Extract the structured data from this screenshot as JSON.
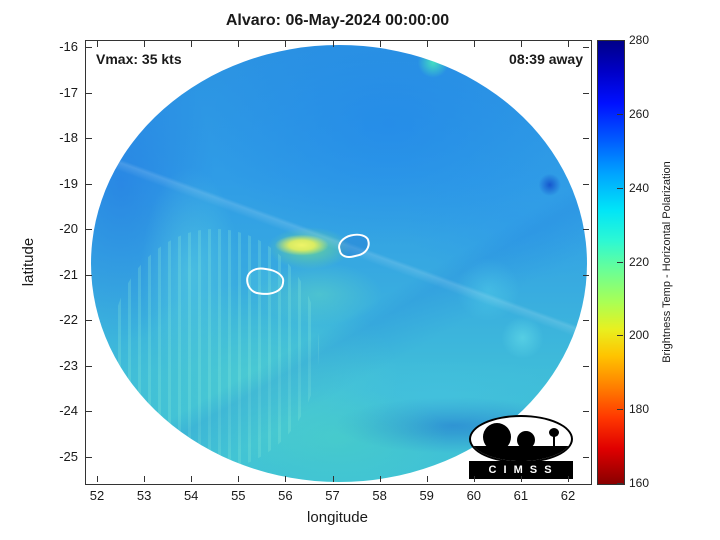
{
  "title": "Alvaro: 06-May-2024 00:00:00",
  "annotations": {
    "vmax": "Vmax: 35 kts",
    "time_away": "08:39 away"
  },
  "axes": {
    "x": {
      "label": "longitude",
      "ticks": [
        "52",
        "53",
        "54",
        "55",
        "56",
        "57",
        "58",
        "59",
        "60",
        "61",
        "62"
      ]
    },
    "y": {
      "label": "latitude",
      "ticks": [
        "-16",
        "-17",
        "-18",
        "-19",
        "-20",
        "-21",
        "-22",
        "-23",
        "-24",
        "-25"
      ]
    }
  },
  "colorbar": {
    "label": "Brightness Temp - Horizontal Polarization",
    "ticks": [
      "280",
      "260",
      "240",
      "220",
      "200",
      "180",
      "160"
    ]
  },
  "logo": {
    "text": "C I M S S"
  },
  "chart_data": {
    "type": "heatmap",
    "title": "Alvaro: 06-May-2024 00:00:00",
    "xlabel": "longitude",
    "ylabel": "latitude",
    "xlim": [
      51.7,
      62.5
    ],
    "ylim": [
      -25.6,
      -15.8
    ],
    "grid": false,
    "annotations": [
      "Vmax: 35 kts",
      "08:39 away"
    ],
    "colorbar": {
      "label": "Brightness Temp - Horizontal Polarization",
      "range": [
        160,
        280
      ],
      "ticks": [
        280,
        260,
        240,
        220,
        200,
        180,
        160
      ],
      "colormap": "jet-reversed (280=dark blue, 160=dark red)",
      "position": "right"
    },
    "features": [
      {
        "name": "satellite-swath",
        "shape": "circular",
        "center_lon": 57.1,
        "center_lat": -20.7,
        "radius_deg": 5.2,
        "dominant_values_K": "240-260 (blue to cyan)"
      },
      {
        "name": "white-contour-1",
        "center_lon": 57.5,
        "center_lat": -20.3
      },
      {
        "name": "white-contour-2",
        "center_lon": 55.5,
        "center_lat": -21.1
      },
      {
        "name": "warm-spot",
        "center_lon": 56.3,
        "center_lat": -20.6,
        "approx_value_K": 210
      },
      {
        "name": "cool-streak",
        "center_lon": 59.1,
        "center_lat": -16.3,
        "approx_value_K": 230
      }
    ]
  }
}
